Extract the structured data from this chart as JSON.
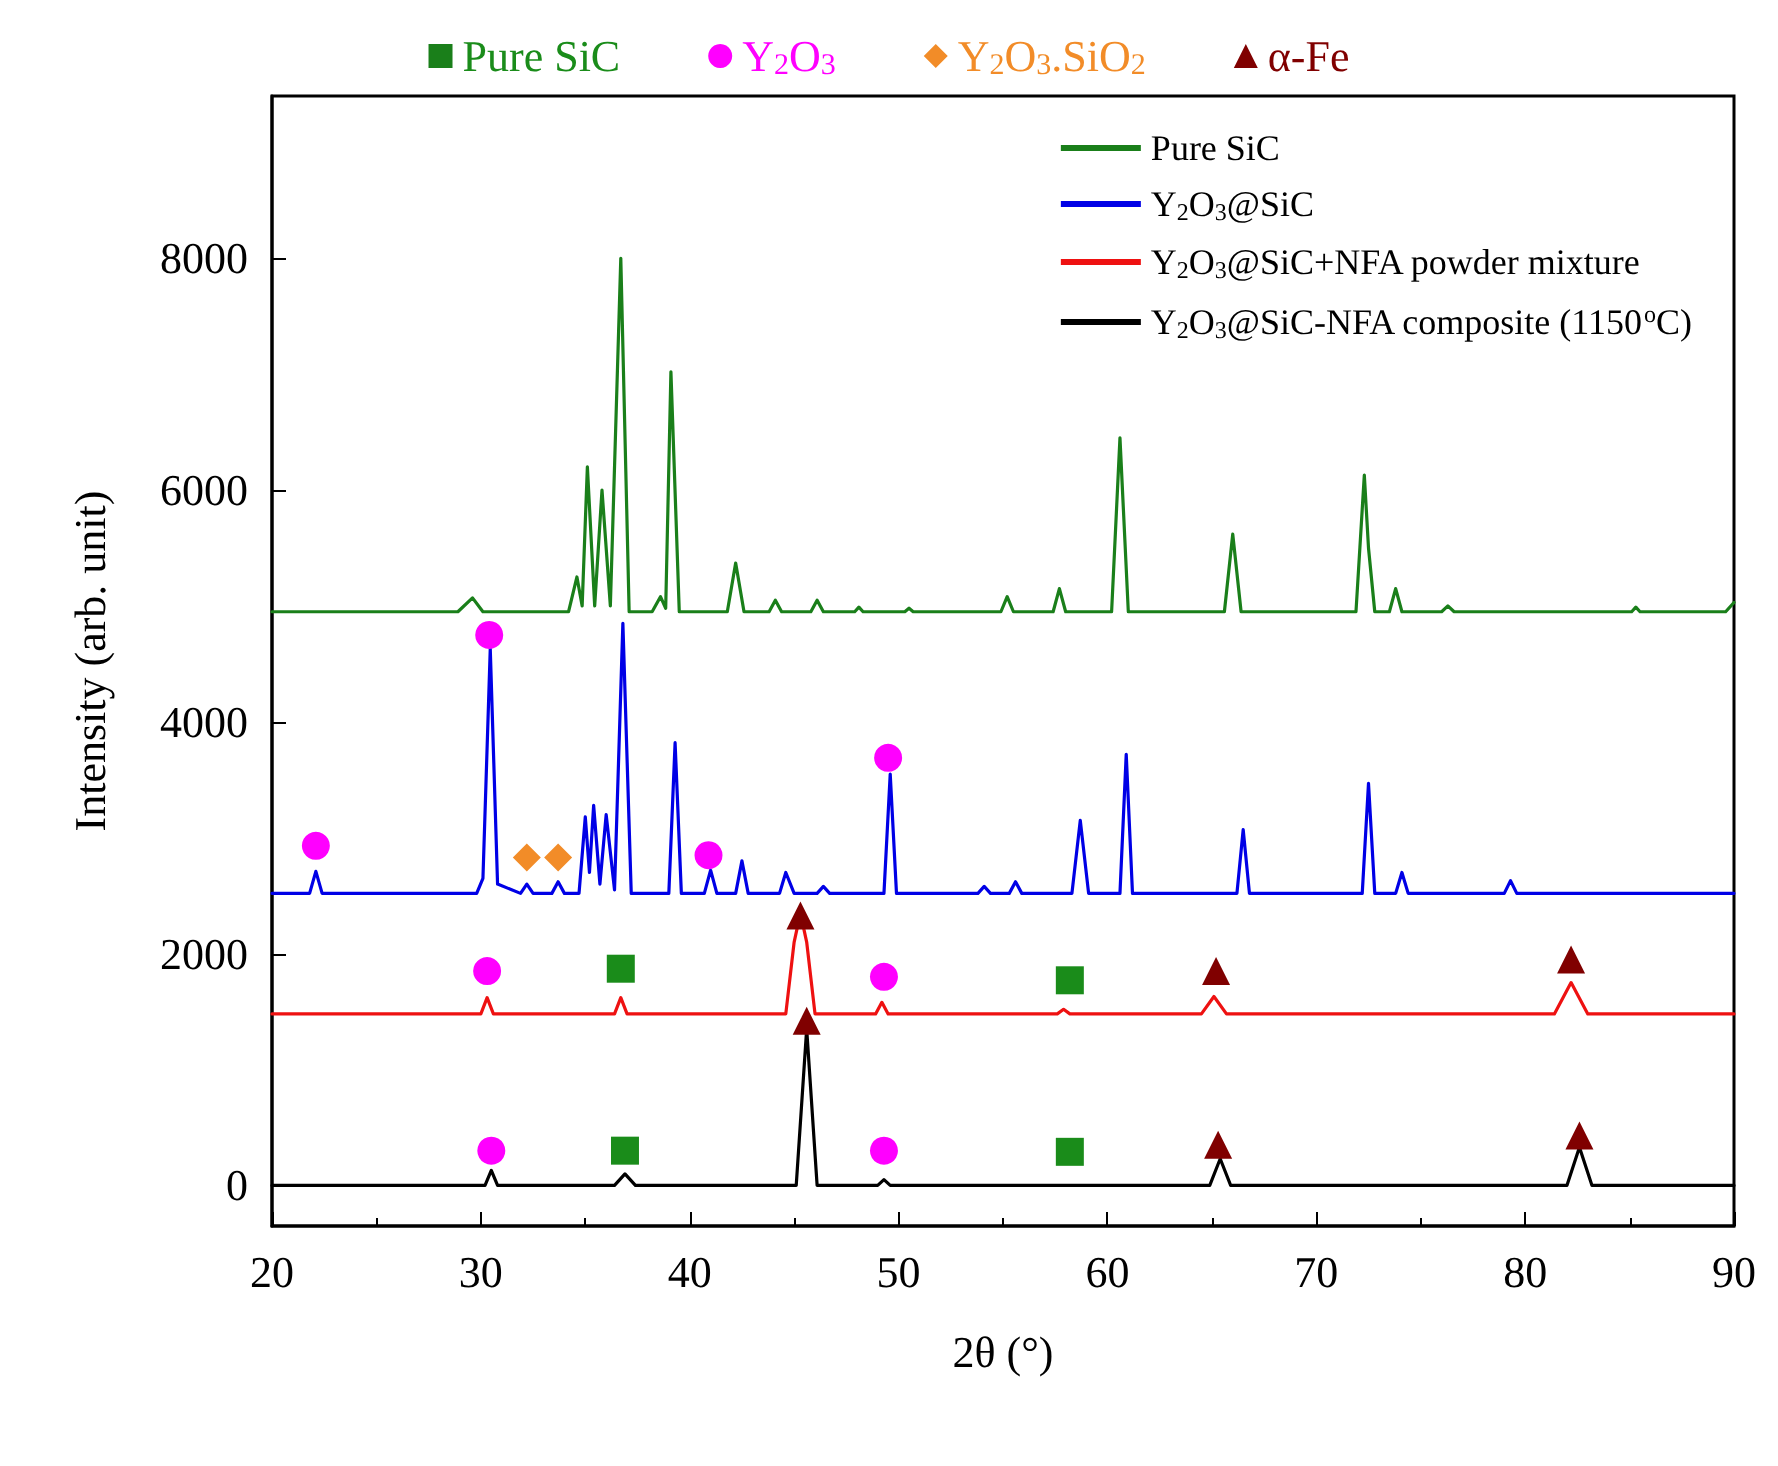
{
  "chart_data": {
    "type": "line",
    "xlabel": "2θ (°)",
    "ylabel": "Intensity (arb. unit)",
    "xlim": [
      20,
      90
    ],
    "xticks": [
      20,
      30,
      40,
      50,
      60,
      70,
      80,
      90
    ],
    "ylim": [
      -350,
      9400
    ],
    "yticks": [
      0,
      2000,
      4000,
      6000,
      8000
    ],
    "grid": false,
    "legend": "top right",
    "line_style": "solid",
    "series": [
      {
        "name": "Pure SiC",
        "color": "#1a7f1a",
        "x": [
          20,
          28.9,
          29.6,
          30.1,
          34.2,
          34.6,
          34.85,
          35.1,
          35.45,
          35.8,
          36.2,
          36.7,
          37.1,
          38.2,
          38.6,
          38.85,
          39.1,
          39.5,
          41.8,
          42.2,
          42.6,
          43.8,
          44.1,
          44.4,
          45.8,
          46.1,
          46.4,
          47.9,
          48.1,
          48.3,
          50.3,
          50.5,
          50.7,
          54.9,
          55.2,
          55.5,
          57.4,
          57.7,
          58.0,
          60.2,
          60.6,
          61.0,
          65.6,
          66.0,
          66.4,
          71.9,
          72.3,
          72.5,
          72.8,
          73.5,
          73.8,
          74.1,
          76.0,
          76.3,
          76.6,
          85.1,
          85.3,
          85.5,
          89.6,
          90
        ],
        "values": [
          4950,
          4950,
          5070,
          4950,
          4950,
          5250,
          5000,
          6200,
          5000,
          6000,
          5000,
          8000,
          4950,
          4950,
          5080,
          4980,
          7020,
          4950,
          4950,
          5370,
          4950,
          4950,
          5050,
          4950,
          4950,
          5050,
          4950,
          4950,
          4990,
          4950,
          4950,
          4980,
          4950,
          4950,
          5080,
          4950,
          4950,
          5150,
          4950,
          4950,
          6450,
          4950,
          4950,
          5620,
          4950,
          4950,
          6130,
          5500,
          4950,
          4950,
          5150,
          4950,
          4950,
          5000,
          4950,
          4950,
          4990,
          4950,
          4950,
          5030
        ]
      },
      {
        "name": "Y$_{2}$O$_{3}$@SiC",
        "color": "#0000e6",
        "x": [
          20,
          21.8,
          22.1,
          22.4,
          29.8,
          30.1,
          30.45,
          30.8,
          31.9,
          32.2,
          32.5,
          33.4,
          33.7,
          34.0,
          34.7,
          35.0,
          35.2,
          35.4,
          35.7,
          36.0,
          36.4,
          36.8,
          37.2,
          39.0,
          39.3,
          39.6,
          40.7,
          41.0,
          41.3,
          42.2,
          42.5,
          42.8,
          44.3,
          44.6,
          45.0,
          46.1,
          46.4,
          46.7,
          49.3,
          49.6,
          49.9,
          53.8,
          54.1,
          54.4,
          55.3,
          55.6,
          55.9,
          58.3,
          58.7,
          59.1,
          60.6,
          60.9,
          61.2,
          66.2,
          66.5,
          66.8,
          72.2,
          72.5,
          72.8,
          73.8,
          74.1,
          74.4,
          79.0,
          79.3,
          79.6,
          90
        ],
        "values": [
          2520,
          2520,
          2710,
          2520,
          2520,
          2650,
          4630,
          2600,
          2520,
          2600,
          2520,
          2520,
          2620,
          2520,
          2520,
          3180,
          2700,
          3280,
          2600,
          3200,
          2550,
          4850,
          2520,
          2520,
          3820,
          2520,
          2520,
          2720,
          2520,
          2520,
          2800,
          2520,
          2520,
          2700,
          2520,
          2520,
          2580,
          2520,
          2520,
          3550,
          2520,
          2520,
          2580,
          2520,
          2520,
          2620,
          2520,
          2520,
          3150,
          2520,
          2520,
          3720,
          2520,
          2520,
          3070,
          2520,
          2520,
          3470,
          2520,
          2520,
          2700,
          2520,
          2520,
          2630,
          2520,
          2520
        ]
      },
      {
        "name": "Y$_{2}$O$_{3}$@SiC+NFA powder mixture",
        "color": "#ee1111",
        "x": [
          20,
          30.0,
          30.3,
          30.6,
          36.4,
          36.7,
          37.0,
          44.6,
          45.0,
          45.3,
          45.6,
          46.0,
          48.9,
          49.2,
          49.5,
          57.6,
          57.9,
          58.2,
          64.5,
          65.1,
          65.7,
          81.4,
          82.2,
          83.0,
          90
        ],
        "values": [
          1480,
          1480,
          1620,
          1480,
          1480,
          1620,
          1480,
          1480,
          2100,
          2350,
          2100,
          1480,
          1480,
          1580,
          1480,
          1480,
          1520,
          1480,
          1480,
          1630,
          1480,
          1480,
          1750,
          1480,
          1480
        ]
      },
      {
        "name": "Y$_{2}$O$_{3}$@SiC-NFA composite (1150$^{o}$C)",
        "color": "#000000",
        "x": [
          20,
          30.2,
          30.5,
          30.8,
          36.4,
          36.9,
          37.4,
          45.1,
          45.6,
          46.1,
          49.0,
          49.3,
          49.6,
          64.9,
          65.4,
          65.9,
          82.0,
          82.6,
          83.2,
          90
        ],
        "values": [
          0,
          0,
          130,
          0,
          0,
          100,
          0,
          0,
          1350,
          0,
          0,
          50,
          0,
          0,
          230,
          0,
          0,
          330,
          0,
          0
        ]
      },
      {
        "name": "Pure SiC",
        "type": "scatter",
        "marker": "square",
        "color": "#1a8c1a",
        "x": [
          36.7,
          58.2,
          36.9,
          58.2
        ],
        "values": [
          1870,
          1770,
          300,
          290
        ]
      },
      {
        "name": "Y$_{2}$O$_{3}$",
        "type": "scatter",
        "marker": "circle",
        "color": "#ff00ff",
        "x": [
          22.1,
          30.4,
          40.9,
          49.5,
          30.3,
          49.3,
          30.5,
          49.3
        ],
        "values": [
          2930,
          4750,
          2850,
          3690,
          1850,
          1800,
          300,
          300
        ]
      },
      {
        "name": "Y$_{2}$O$_{3}$.SiO$_{2}$",
        "type": "scatter",
        "marker": "diamond",
        "color": "#f28c28",
        "x": [
          32.2,
          33.7
        ],
        "values": [
          2830,
          2830
        ]
      },
      {
        "name": "α-Fe",
        "type": "scatter",
        "marker": "triangle",
        "color": "#800000",
        "x": [
          45.3,
          65.2,
          82.2,
          45.6,
          65.3,
          82.6
        ],
        "values": [
          2330,
          1850,
          1950,
          1420,
          350,
          430
        ]
      }
    ]
  }
}
